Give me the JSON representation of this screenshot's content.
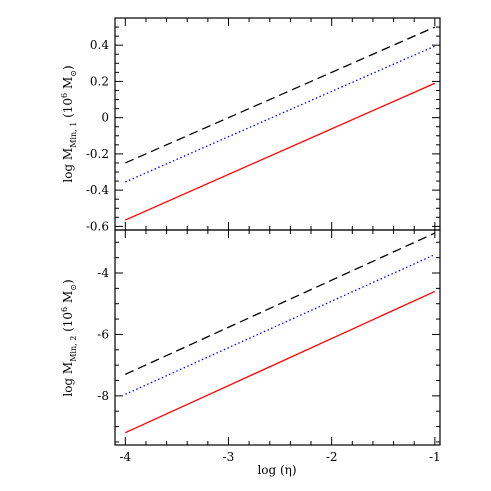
{
  "chart_data": [
    {
      "type": "line",
      "panel": "top",
      "ylabel": {
        "prefix": "log M",
        "subscript": "Min, 1",
        "unit_open": " (10",
        "unit_exp": "6",
        "unit_mid": " M",
        "unit_sub": "⊙",
        "unit_close": ")"
      },
      "xlabel": "",
      "xlim": [
        -4.1,
        -0.95
      ],
      "ylim": [
        -0.62,
        0.55
      ],
      "xticks": [
        -4,
        -3,
        -2,
        -1
      ],
      "yticks": [
        -0.6,
        -0.4,
        -0.2,
        0,
        0.2,
        0.4
      ],
      "ytick_labels": [
        "-0.6",
        "-0.4",
        "-0.2",
        "0",
        "0.2",
        "0.4"
      ],
      "series": [
        {
          "style": "dashed",
          "color": "#000000",
          "x": [
            -4,
            -1
          ],
          "y": [
            -0.25,
            0.5
          ]
        },
        {
          "style": "dotted",
          "color": "#0000ff",
          "x": [
            -4,
            -1
          ],
          "y": [
            -0.355,
            0.395
          ]
        },
        {
          "style": "solid",
          "color": "#ff0000",
          "x": [
            -4,
            -1
          ],
          "y": [
            -0.565,
            0.19
          ]
        }
      ]
    },
    {
      "type": "line",
      "panel": "bottom",
      "ylabel": {
        "prefix": "log M",
        "subscript": "Min, 2",
        "unit_open": " (10",
        "unit_exp": "6",
        "unit_mid": " M",
        "unit_sub": "⊙",
        "unit_close": ")"
      },
      "xlabel": "log (η)",
      "xlim": [
        -4.1,
        -0.95
      ],
      "ylim": [
        -9.6,
        -2.6
      ],
      "xticks": [
        -4,
        -3,
        -2,
        -1
      ],
      "xtick_labels": [
        "-4",
        "-3",
        "-2",
        "-1"
      ],
      "yticks": [
        -8,
        -6,
        -4
      ],
      "ytick_labels": [
        "-8",
        "-6",
        "-4"
      ],
      "series": [
        {
          "style": "dashed",
          "color": "#000000",
          "x": [
            -4,
            -1
          ],
          "y": [
            -7.3,
            -2.7
          ]
        },
        {
          "style": "dotted",
          "color": "#0000ff",
          "x": [
            -4,
            -1
          ],
          "y": [
            -7.95,
            -3.4
          ]
        },
        {
          "style": "solid",
          "color": "#ff0000",
          "x": [
            -4,
            -1
          ],
          "y": [
            -9.2,
            -4.6
          ]
        }
      ]
    }
  ]
}
